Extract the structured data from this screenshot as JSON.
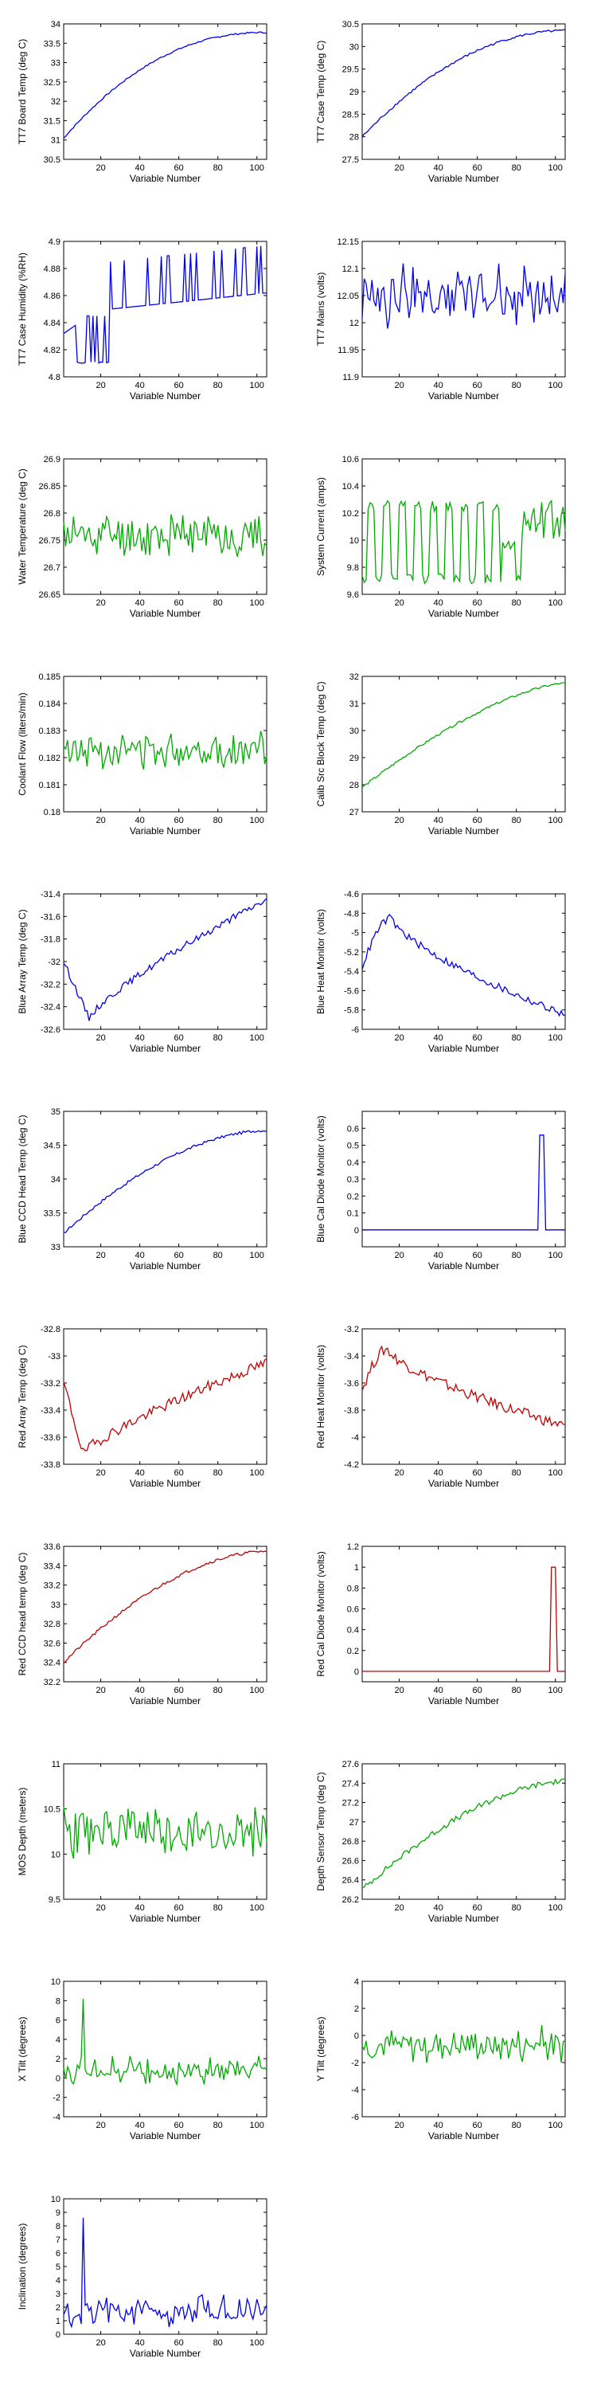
{
  "figure": {
    "xlabel": "Variable Number"
  },
  "colors": {
    "blue": "#0000ee",
    "green": "#00aa00",
    "red": "#c00000"
  },
  "chart_data": [
    {
      "type": "line",
      "ylabel": "TT7 Board Temp (deg C)",
      "color": "blue",
      "xlim": [
        1,
        105
      ],
      "ylim": [
        30.5,
        34
      ],
      "xticks": [
        20,
        40,
        60,
        80,
        100
      ],
      "yticks": [
        "30.5",
        "31",
        "31.5",
        "32",
        "32.5",
        "33",
        "33.5",
        "34"
      ],
      "shape": "increasing",
      "start": 31.05,
      "end": 33.78,
      "curve": 2.2,
      "noise": 0.02
    },
    {
      "type": "line",
      "ylabel": "TT7 Case Temp (deg C)",
      "color": "blue",
      "xlim": [
        1,
        105
      ],
      "ylim": [
        27.5,
        30.5
      ],
      "xticks": [
        20,
        40,
        60,
        80,
        100
      ],
      "yticks": [
        "27.5",
        "28",
        "28.5",
        "29",
        "29.5",
        "30",
        "30.5"
      ],
      "shape": "increasing",
      "start": 28.0,
      "end": 30.35,
      "curve": 2.0,
      "noise": 0.025
    },
    {
      "type": "line",
      "ylabel": "TT7 Case Humidity (%RH)",
      "color": "blue",
      "xlim": [
        1,
        105
      ],
      "ylim": [
        4.8,
        4.9
      ],
      "xticks": [
        20,
        40,
        60,
        80,
        100
      ],
      "yticks": [
        "4.8",
        "4.82",
        "4.84",
        "4.86",
        "4.88",
        "4.9"
      ],
      "shape": "humidity"
    },
    {
      "type": "line",
      "ylabel": "TT7 Mains (volts)",
      "color": "blue",
      "xlim": [
        1,
        105
      ],
      "ylim": [
        11.9,
        12.15
      ],
      "xticks": [
        20,
        40,
        60,
        80,
        100
      ],
      "yticks": [
        "11.9",
        "11.95",
        "12",
        "12.05",
        "12.1",
        "12.15"
      ],
      "shape": "noise",
      "center": 12.05,
      "amp": 0.07
    },
    {
      "type": "line",
      "ylabel": "Water Temperature (deg C)",
      "color": "green",
      "xlim": [
        1,
        105
      ],
      "ylim": [
        26.65,
        26.9
      ],
      "xticks": [
        20,
        40,
        60,
        80,
        100
      ],
      "yticks": [
        "26.65",
        "26.7",
        "26.75",
        "26.8",
        "26.85",
        "26.9"
      ],
      "shape": "noise",
      "center": 26.76,
      "amp": 0.05
    },
    {
      "type": "line",
      "ylabel": "System Current (amps)",
      "color": "green",
      "xlim": [
        1,
        105
      ],
      "ylim": [
        9.6,
        10.6
      ],
      "xticks": [
        20,
        40,
        60,
        80,
        100
      ],
      "yticks": [
        "9.6",
        "9.8",
        "10",
        "10.2",
        "10.4",
        "10.6"
      ],
      "shape": "square",
      "low": 9.72,
      "high": 10.25
    },
    {
      "type": "line",
      "ylabel": "Coolant Flow (liters/min)",
      "color": "green",
      "xlim": [
        1,
        105
      ],
      "ylim": [
        0.18,
        0.185
      ],
      "xticks": [
        20,
        40,
        60,
        80,
        100
      ],
      "yticks": [
        "0.18",
        "0.181",
        "0.182",
        "0.183",
        "0.184",
        "0.185"
      ],
      "shape": "noise",
      "center": 0.1823,
      "amp": 0.0008
    },
    {
      "type": "line",
      "ylabel": "Calib Src Block Temp (deg C)",
      "color": "green",
      "xlim": [
        1,
        105
      ],
      "ylim": [
        27,
        32
      ],
      "xticks": [
        20,
        40,
        60,
        80,
        100
      ],
      "yticks": [
        "27",
        "28",
        "29",
        "30",
        "31",
        "32"
      ],
      "shape": "increasing",
      "start": 27.9,
      "end": 31.75,
      "curve": 1.5,
      "noise": 0.04
    },
    {
      "type": "line",
      "ylabel": "Blue Array Temp (deg C)",
      "color": "blue",
      "xlim": [
        1,
        105
      ],
      "ylim": [
        -32.6,
        -31.4
      ],
      "xticks": [
        20,
        40,
        60,
        80,
        100
      ],
      "yticks": [
        "-32.6",
        "-32.4",
        "-32.2",
        "-32",
        "-31.8",
        "-31.6",
        "-31.4"
      ],
      "shape": "dip",
      "start": -32.0,
      "min": -32.5,
      "minAt": 14,
      "end": -31.45,
      "noise": 0.03
    },
    {
      "type": "line",
      "ylabel": "Blue Heat Monitor (volts)",
      "color": "blue",
      "xlim": [
        1,
        105
      ],
      "ylim": [
        -6,
        -4.6
      ],
      "xticks": [
        20,
        40,
        60,
        80,
        100
      ],
      "yticks": [
        "-6",
        "-5.8",
        "-5.6",
        "-5.4",
        "-5.2",
        "-5",
        "-4.8",
        "-4.6"
      ],
      "shape": "bump",
      "start": -5.35,
      "peak": -4.85,
      "peakAt": 16,
      "end": -5.85,
      "noise": 0.04
    },
    {
      "type": "line",
      "ylabel": "Blue CCD Head Temp (deg C)",
      "color": "blue",
      "xlim": [
        1,
        105
      ],
      "ylim": [
        33,
        35
      ],
      "xticks": [
        20,
        40,
        60,
        80,
        100
      ],
      "yticks": [
        "33",
        "33.5",
        "34",
        "34.5",
        "35"
      ],
      "shape": "increasing",
      "start": 33.2,
      "end": 34.72,
      "curve": 1.8,
      "noise": 0.02
    },
    {
      "type": "line",
      "ylabel": "Blue Cal Diode Monitor (volts)",
      "color": "blue",
      "xlim": [
        1,
        105
      ],
      "ylim": [
        -0.1,
        0.7
      ],
      "xticks": [
        20,
        40,
        60,
        80,
        100
      ],
      "yticks": [
        "0",
        "0.1",
        "0.2",
        "0.3",
        "0.4",
        "0.5",
        "0.6"
      ],
      "shape": "spike",
      "base": 0,
      "peak": 0.56,
      "at": [
        92,
        94
      ]
    },
    {
      "type": "line",
      "ylabel": "Red Array Temp (deg C)",
      "color": "red",
      "xlim": [
        1,
        105
      ],
      "ylim": [
        -33.8,
        -32.8
      ],
      "xticks": [
        20,
        40,
        60,
        80,
        100
      ],
      "yticks": [
        "-33.8",
        "-33.6",
        "-33.4",
        "-33.2",
        "-33",
        "-32.8"
      ],
      "shape": "dip",
      "start": -33.2,
      "min": -33.72,
      "minAt": 11,
      "end": -33.05,
      "noise": 0.04
    },
    {
      "type": "line",
      "ylabel": "Red Heat Monitor (volts)",
      "color": "red",
      "xlim": [
        1,
        105
      ],
      "ylim": [
        -4.2,
        -3.2
      ],
      "xticks": [
        20,
        40,
        60,
        80,
        100
      ],
      "yticks": [
        "-4.2",
        "-4",
        "-3.8",
        "-3.6",
        "-3.4",
        "-3.2"
      ],
      "shape": "bump",
      "start": -3.65,
      "peak": -3.35,
      "peakAt": 14,
      "end": -3.92,
      "noise": 0.04
    },
    {
      "type": "line",
      "ylabel": "Red CCD head temp (deg C)",
      "color": "red",
      "xlim": [
        1,
        105
      ],
      "ylim": [
        32.2,
        33.6
      ],
      "xticks": [
        20,
        40,
        60,
        80,
        100
      ],
      "yticks": [
        "32.2",
        "32.4",
        "32.6",
        "32.8",
        "33",
        "33.2",
        "33.4",
        "33.6"
      ],
      "shape": "increasing",
      "start": 32.4,
      "end": 33.55,
      "curve": 1.8,
      "noise": 0.015
    },
    {
      "type": "line",
      "ylabel": "Red Cal Diode Monitor (volts)",
      "color": "red",
      "xlim": [
        1,
        105
      ],
      "ylim": [
        -0.1,
        1.2
      ],
      "xticks": [
        20,
        40,
        60,
        80,
        100
      ],
      "yticks": [
        "0",
        "0.2",
        "0.4",
        "0.6",
        "0.8",
        "1",
        "1.2"
      ],
      "shape": "spike",
      "base": 0,
      "peak": 1.0,
      "at": [
        98,
        100
      ]
    },
    {
      "type": "line",
      "ylabel": "MOS Depth (meters)",
      "color": "green",
      "xlim": [
        1,
        105
      ],
      "ylim": [
        9.5,
        11
      ],
      "xticks": [
        20,
        40,
        60,
        80,
        100
      ],
      "yticks": [
        "9.5",
        "10",
        "10.5",
        "11"
      ],
      "shape": "noise",
      "center": 10.25,
      "amp": 0.35
    },
    {
      "type": "line",
      "ylabel": "Depth Sensor Temp (deg C)",
      "color": "green",
      "xlim": [
        1,
        105
      ],
      "ylim": [
        26.2,
        27.6
      ],
      "xticks": [
        20,
        40,
        60,
        80,
        100
      ],
      "yticks": [
        "26.2",
        "26.4",
        "26.6",
        "26.8",
        "27",
        "27.2",
        "27.4",
        "27.6"
      ],
      "shape": "increasing",
      "start": 26.3,
      "end": 27.42,
      "curve": 1.7,
      "noise": 0.03
    },
    {
      "type": "line",
      "ylabel": "X Tilt (degrees)",
      "color": "green",
      "xlim": [
        1,
        105
      ],
      "ylim": [
        -4,
        10
      ],
      "xticks": [
        20,
        40,
        60,
        80,
        100
      ],
      "yticks": [
        "-4",
        "-2",
        "0",
        "2",
        "4",
        "6",
        "8",
        "10"
      ],
      "shape": "noise",
      "center": 0.8,
      "amp": 1.6,
      "spikeAt": 11,
      "spikeVal": 8.2
    },
    {
      "type": "line",
      "ylabel": "Y Tilt (degrees)",
      "color": "green",
      "xlim": [
        1,
        105
      ],
      "ylim": [
        -6,
        4
      ],
      "xticks": [
        20,
        40,
        60,
        80,
        100
      ],
      "yticks": [
        "-6",
        "-4",
        "-2",
        "0",
        "2",
        "4"
      ],
      "shape": "noise",
      "center": -0.7,
      "amp": 1.5
    },
    {
      "type": "line",
      "ylabel": "Inclination (degrees)",
      "color": "blue",
      "xlim": [
        1,
        105
      ],
      "ylim": [
        0,
        10
      ],
      "xticks": [
        20,
        40,
        60,
        80,
        100
      ],
      "yticks": [
        "0",
        "1",
        "2",
        "3",
        "4",
        "5",
        "6",
        "7",
        "8",
        "9",
        "10"
      ],
      "shape": "noise",
      "center": 1.7,
      "amp": 1.3,
      "min": 0.2,
      "spikeAt": 11,
      "spikeVal": 8.6
    }
  ]
}
